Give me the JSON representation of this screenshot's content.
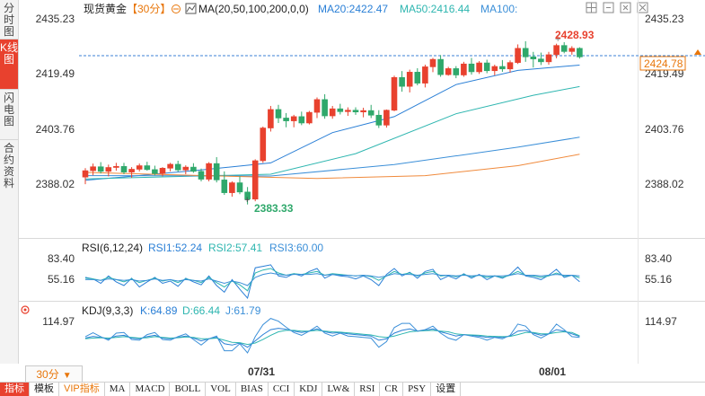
{
  "sidebar": {
    "tabs": [
      {
        "label": "分时图",
        "active": false
      },
      {
        "label": "K线图",
        "active": true
      },
      {
        "label": "闪电图",
        "active": false
      },
      {
        "label": "合约资料",
        "active": false
      }
    ]
  },
  "header": {
    "symbol": "现货黄金",
    "period": "【30分】",
    "ma_params": "MA(20,50,100,200,0,0)",
    "ma20": "MA20:2422.47",
    "ma50": "MA50:2416.44",
    "ma100": "MA100:"
  },
  "price_axis": {
    "ticks": [
      "2435.23",
      "2419.49",
      "2403.76",
      "2388.02"
    ],
    "current": "2424.78",
    "high_label": "2428.93",
    "low_label": "2383.33"
  },
  "rsi": {
    "title": "RSI(6,12,24)",
    "rsi1": "RSI1:52.24",
    "rsi2": "RSI2:57.41",
    "rsi3": "RSI3:60.00",
    "ticks": [
      "83.40",
      "55.16"
    ]
  },
  "kdj": {
    "title": "KDJ(9,3,3)",
    "k": "K:64.89",
    "d": "D:66.44",
    "j": "J:61.79",
    "ticks": [
      "114.97"
    ]
  },
  "time_axis": [
    "07/31",
    "08/01"
  ],
  "period_selector": "30分",
  "indicator_tabs": [
    "指标",
    "模板",
    "VIP指标",
    "MA",
    "MACD",
    "BOLL",
    "VOL",
    "BIAS",
    "CCI",
    "KDJ",
    "LW&",
    "RSI",
    "CR",
    "PSY",
    "设置"
  ],
  "colors": {
    "up": "#e8412e",
    "down": "#2fa86b",
    "ma20": "#2a7fd6",
    "ma50": "#2eb6b0",
    "ma100": "#3b8fd8",
    "ma200": "#f08a3c",
    "accent": "#e8760a"
  },
  "chart_data": {
    "type": "candlestick",
    "candles": [
      [
        2391.0,
        2393.5,
        2389.0,
        2392.8
      ],
      [
        2392.8,
        2394.8,
        2391.5,
        2393.9
      ],
      [
        2393.9,
        2395.2,
        2392.0,
        2392.6
      ],
      [
        2392.6,
        2394.5,
        2391.2,
        2393.7
      ],
      [
        2393.7,
        2395.0,
        2392.8,
        2394.0
      ],
      [
        2394.0,
        2395.0,
        2391.8,
        2392.4
      ],
      [
        2392.4,
        2393.8,
        2390.8,
        2393.2
      ],
      [
        2393.2,
        2394.8,
        2392.6,
        2394.2
      ],
      [
        2394.2,
        2395.3,
        2392.8,
        2393.1
      ],
      [
        2393.1,
        2394.2,
        2391.5,
        2392.0
      ],
      [
        2392.0,
        2393.8,
        2391.2,
        2393.5
      ],
      [
        2393.5,
        2395.0,
        2392.6,
        2394.6
      ],
      [
        2394.6,
        2395.6,
        2392.5,
        2393.0
      ],
      [
        2393.0,
        2394.3,
        2391.8,
        2393.8
      ],
      [
        2393.8,
        2394.9,
        2392.2,
        2392.6
      ],
      [
        2392.6,
        2393.4,
        2389.8,
        2390.4
      ],
      [
        2390.4,
        2395.2,
        2389.8,
        2394.8
      ],
      [
        2394.8,
        2396.6,
        2389.5,
        2390.2
      ],
      [
        2390.2,
        2392.6,
        2386.0,
        2386.6
      ],
      [
        2386.6,
        2389.8,
        2385.5,
        2389.4
      ],
      [
        2389.4,
        2391.2,
        2386.2,
        2386.8
      ],
      [
        2386.8,
        2388.2,
        2383.3,
        2384.8
      ],
      [
        2384.8,
        2396.0,
        2384.2,
        2395.6
      ],
      [
        2395.6,
        2405.2,
        2395.0,
        2404.8
      ],
      [
        2404.8,
        2411.0,
        2403.8,
        2410.0
      ],
      [
        2410.0,
        2411.3,
        2406.2,
        2407.6
      ],
      [
        2407.6,
        2409.0,
        2405.0,
        2406.8
      ],
      [
        2406.8,
        2408.5,
        2405.0,
        2408.0
      ],
      [
        2408.0,
        2409.4,
        2405.6,
        2406.2
      ],
      [
        2406.2,
        2409.6,
        2405.8,
        2409.2
      ],
      [
        2409.2,
        2413.4,
        2407.6,
        2412.8
      ],
      [
        2412.8,
        2414.3,
        2407.4,
        2408.2
      ],
      [
        2408.2,
        2411.0,
        2407.4,
        2410.2
      ],
      [
        2410.2,
        2411.6,
        2408.6,
        2409.4
      ],
      [
        2409.4,
        2410.6,
        2408.2,
        2409.8
      ],
      [
        2409.8,
        2410.6,
        2408.5,
        2409.3
      ],
      [
        2409.3,
        2410.5,
        2407.8,
        2409.7
      ],
      [
        2409.7,
        2411.3,
        2407.6,
        2408.4
      ],
      [
        2408.4,
        2409.8,
        2404.8,
        2405.6
      ],
      [
        2405.6,
        2410.0,
        2404.9,
        2409.8
      ],
      [
        2409.8,
        2419.5,
        2409.5,
        2419.0
      ],
      [
        2419.0,
        2420.8,
        2415.0,
        2416.5
      ],
      [
        2416.5,
        2421.2,
        2414.8,
        2420.5
      ],
      [
        2420.5,
        2421.6,
        2416.8,
        2417.4
      ],
      [
        2417.4,
        2422.6,
        2416.2,
        2422.0
      ],
      [
        2422.0,
        2424.5,
        2420.5,
        2424.1
      ],
      [
        2424.1,
        2425.3,
        2419.2,
        2419.8
      ],
      [
        2419.8,
        2422.0,
        2419.5,
        2421.5
      ],
      [
        2421.5,
        2422.2,
        2418.8,
        2419.7
      ],
      [
        2419.7,
        2423.4,
        2419.2,
        2422.8
      ],
      [
        2422.8,
        2424.5,
        2419.8,
        2420.6
      ],
      [
        2420.6,
        2423.6,
        2420.0,
        2423.1
      ],
      [
        2423.1,
        2424.0,
        2420.2,
        2420.9
      ],
      [
        2420.9,
        2422.6,
        2419.6,
        2422.1
      ],
      [
        2422.1,
        2423.9,
        2420.6,
        2421.4
      ],
      [
        2421.4,
        2423.8,
        2420.4,
        2423.2
      ],
      [
        2423.2,
        2428.3,
        2422.8,
        2427.2
      ],
      [
        2427.2,
        2429.2,
        2423.4,
        2424.8
      ],
      [
        2424.8,
        2426.2,
        2421.8,
        2424.2
      ],
      [
        2424.2,
        2426.0,
        2422.5,
        2423.4
      ],
      [
        2423.4,
        2426.2,
        2422.6,
        2425.4
      ],
      [
        2425.4,
        2428.5,
        2424.4,
        2428.0
      ],
      [
        2428.0,
        2428.93,
        2425.8,
        2426.3
      ],
      [
        2426.3,
        2427.8,
        2425.4,
        2427.2
      ],
      [
        2427.2,
        2427.5,
        2424.3,
        2424.78
      ]
    ],
    "ma_series": [
      {
        "name": "MA20",
        "color": "#2a7fd6",
        "pts": [
          [
            0,
            2390.1
          ],
          [
            15,
            2393.0
          ],
          [
            24,
            2395.0
          ],
          [
            32,
            2403.5
          ],
          [
            40,
            2408.0
          ],
          [
            48,
            2417.0
          ],
          [
            56,
            2421.0
          ],
          [
            64,
            2422.47
          ]
        ]
      },
      {
        "name": "MA50",
        "color": "#2eb6b0",
        "pts": [
          [
            0,
            2390.5
          ],
          [
            24,
            2391.8
          ],
          [
            35,
            2397.6
          ],
          [
            48,
            2408.8
          ],
          [
            58,
            2414.0
          ],
          [
            64,
            2416.44
          ]
        ]
      },
      {
        "name": "MA100",
        "color": "#3b8fd8",
        "pts": [
          [
            0,
            2391.4
          ],
          [
            24,
            2391.3
          ],
          [
            40,
            2394.5
          ],
          [
            56,
            2399.4
          ],
          [
            64,
            2402.2
          ]
        ]
      },
      {
        "name": "MA200",
        "color": "#f08a3c",
        "pts": [
          [
            0,
            2392.3
          ],
          [
            14,
            2391.5
          ],
          [
            30,
            2390.6
          ],
          [
            44,
            2391.4
          ],
          [
            56,
            2394.2
          ],
          [
            64,
            2397.4
          ]
        ]
      }
    ],
    "rsi_series": [
      {
        "name": "RSI1",
        "values": [
          58,
          56,
          50,
          60,
          52,
          47,
          57,
          45,
          52,
          58,
          50,
          53,
          46,
          57,
          52,
          48,
          60,
          47,
          38,
          55,
          42,
          30,
          71,
          73,
          75,
          60,
          58,
          63,
          60,
          66,
          70,
          57,
          62,
          60,
          59,
          56,
          60,
          55,
          47,
          62,
          70,
          60,
          65,
          57,
          66,
          69,
          55,
          60,
          56,
          63,
          57,
          62,
          55,
          60,
          57,
          62,
          72,
          60,
          58,
          55,
          61,
          69,
          58,
          61,
          52.24
        ]
      },
      {
        "name": "RSI2",
        "values": [
          57,
          56,
          54,
          58,
          55,
          52,
          56,
          51,
          54,
          57,
          53,
          55,
          51,
          56,
          54,
          51,
          58,
          51,
          45,
          53,
          48,
          40,
          64,
          68,
          70,
          64,
          61,
          63,
          62,
          64,
          66,
          61,
          63,
          62,
          61,
          60,
          61,
          59,
          54,
          60,
          66,
          62,
          64,
          60,
          64,
          66,
          60,
          61,
          59,
          62,
          59,
          61,
          58,
          60,
          58,
          61,
          66,
          61,
          60,
          58,
          60,
          64,
          60,
          61,
          57.41
        ]
      },
      {
        "name": "RSI3",
        "values": [
          55,
          55,
          54,
          56,
          55,
          54,
          55,
          53,
          54,
          56,
          54,
          55,
          53,
          55,
          54,
          53,
          56,
          53,
          50,
          53,
          51,
          47,
          58,
          62,
          64,
          62,
          61,
          62,
          62,
          62,
          63,
          61,
          62,
          61,
          61,
          60,
          61,
          60,
          58,
          60,
          63,
          62,
          62,
          61,
          62,
          63,
          61,
          61,
          60,
          61,
          60,
          61,
          60,
          60,
          60,
          61,
          63,
          61,
          61,
          60,
          61,
          62,
          61,
          61,
          60.0
        ]
      }
    ],
    "kdj_series": [
      {
        "name": "K",
        "values": [
          60,
          65,
          62,
          58,
          66,
          68,
          60,
          58,
          64,
          68,
          60,
          58,
          62,
          66,
          60,
          52,
          58,
          62,
          44,
          40,
          46,
          34,
          52,
          70,
          84,
          88,
          85,
          80,
          76,
          80,
          86,
          78,
          74,
          76,
          72,
          70,
          68,
          66,
          54,
          58,
          74,
          82,
          86,
          80,
          82,
          86,
          78,
          72,
          66,
          70,
          68,
          66,
          62,
          64,
          62,
          66,
          80,
          82,
          74,
          68,
          72,
          84,
          80,
          72,
          64.89
        ]
      },
      {
        "name": "D",
        "values": [
          58,
          60,
          61,
          60,
          62,
          64,
          62,
          60,
          61,
          64,
          62,
          60,
          61,
          63,
          62,
          58,
          58,
          60,
          54,
          48,
          47,
          42,
          46,
          56,
          68,
          78,
          82,
          82,
          80,
          80,
          82,
          80,
          78,
          77,
          75,
          73,
          71,
          69,
          64,
          62,
          66,
          72,
          78,
          80,
          81,
          82,
          80,
          78,
          72,
          70,
          69,
          68,
          66,
          65,
          64,
          65,
          70,
          76,
          76,
          72,
          72,
          76,
          78,
          76,
          66.44
        ]
      },
      {
        "name": "J",
        "values": [
          64,
          75,
          64,
          54,
          74,
          76,
          56,
          54,
          70,
          76,
          56,
          54,
          64,
          72,
          56,
          40,
          58,
          66,
          24,
          24,
          44,
          18,
          64,
          98,
          116,
          108,
          91,
          76,
          68,
          80,
          94,
          74,
          66,
          74,
          66,
          64,
          62,
          60,
          34,
          50,
          90,
          102,
          102,
          80,
          84,
          94,
          74,
          60,
          54,
          70,
          66,
          62,
          54,
          62,
          58,
          68,
          100,
          94,
          70,
          60,
          72,
          100,
          84,
          64,
          61.79
        ]
      }
    ],
    "rsi_range": [
      30,
      83.4
    ],
    "kdj_range": [
      0,
      114.97
    ],
    "price_range": [
      2378.0,
      2437.0
    ],
    "ylim_labels": [
      "2435.23",
      "2419.49",
      "2403.76",
      "2388.02"
    ]
  }
}
